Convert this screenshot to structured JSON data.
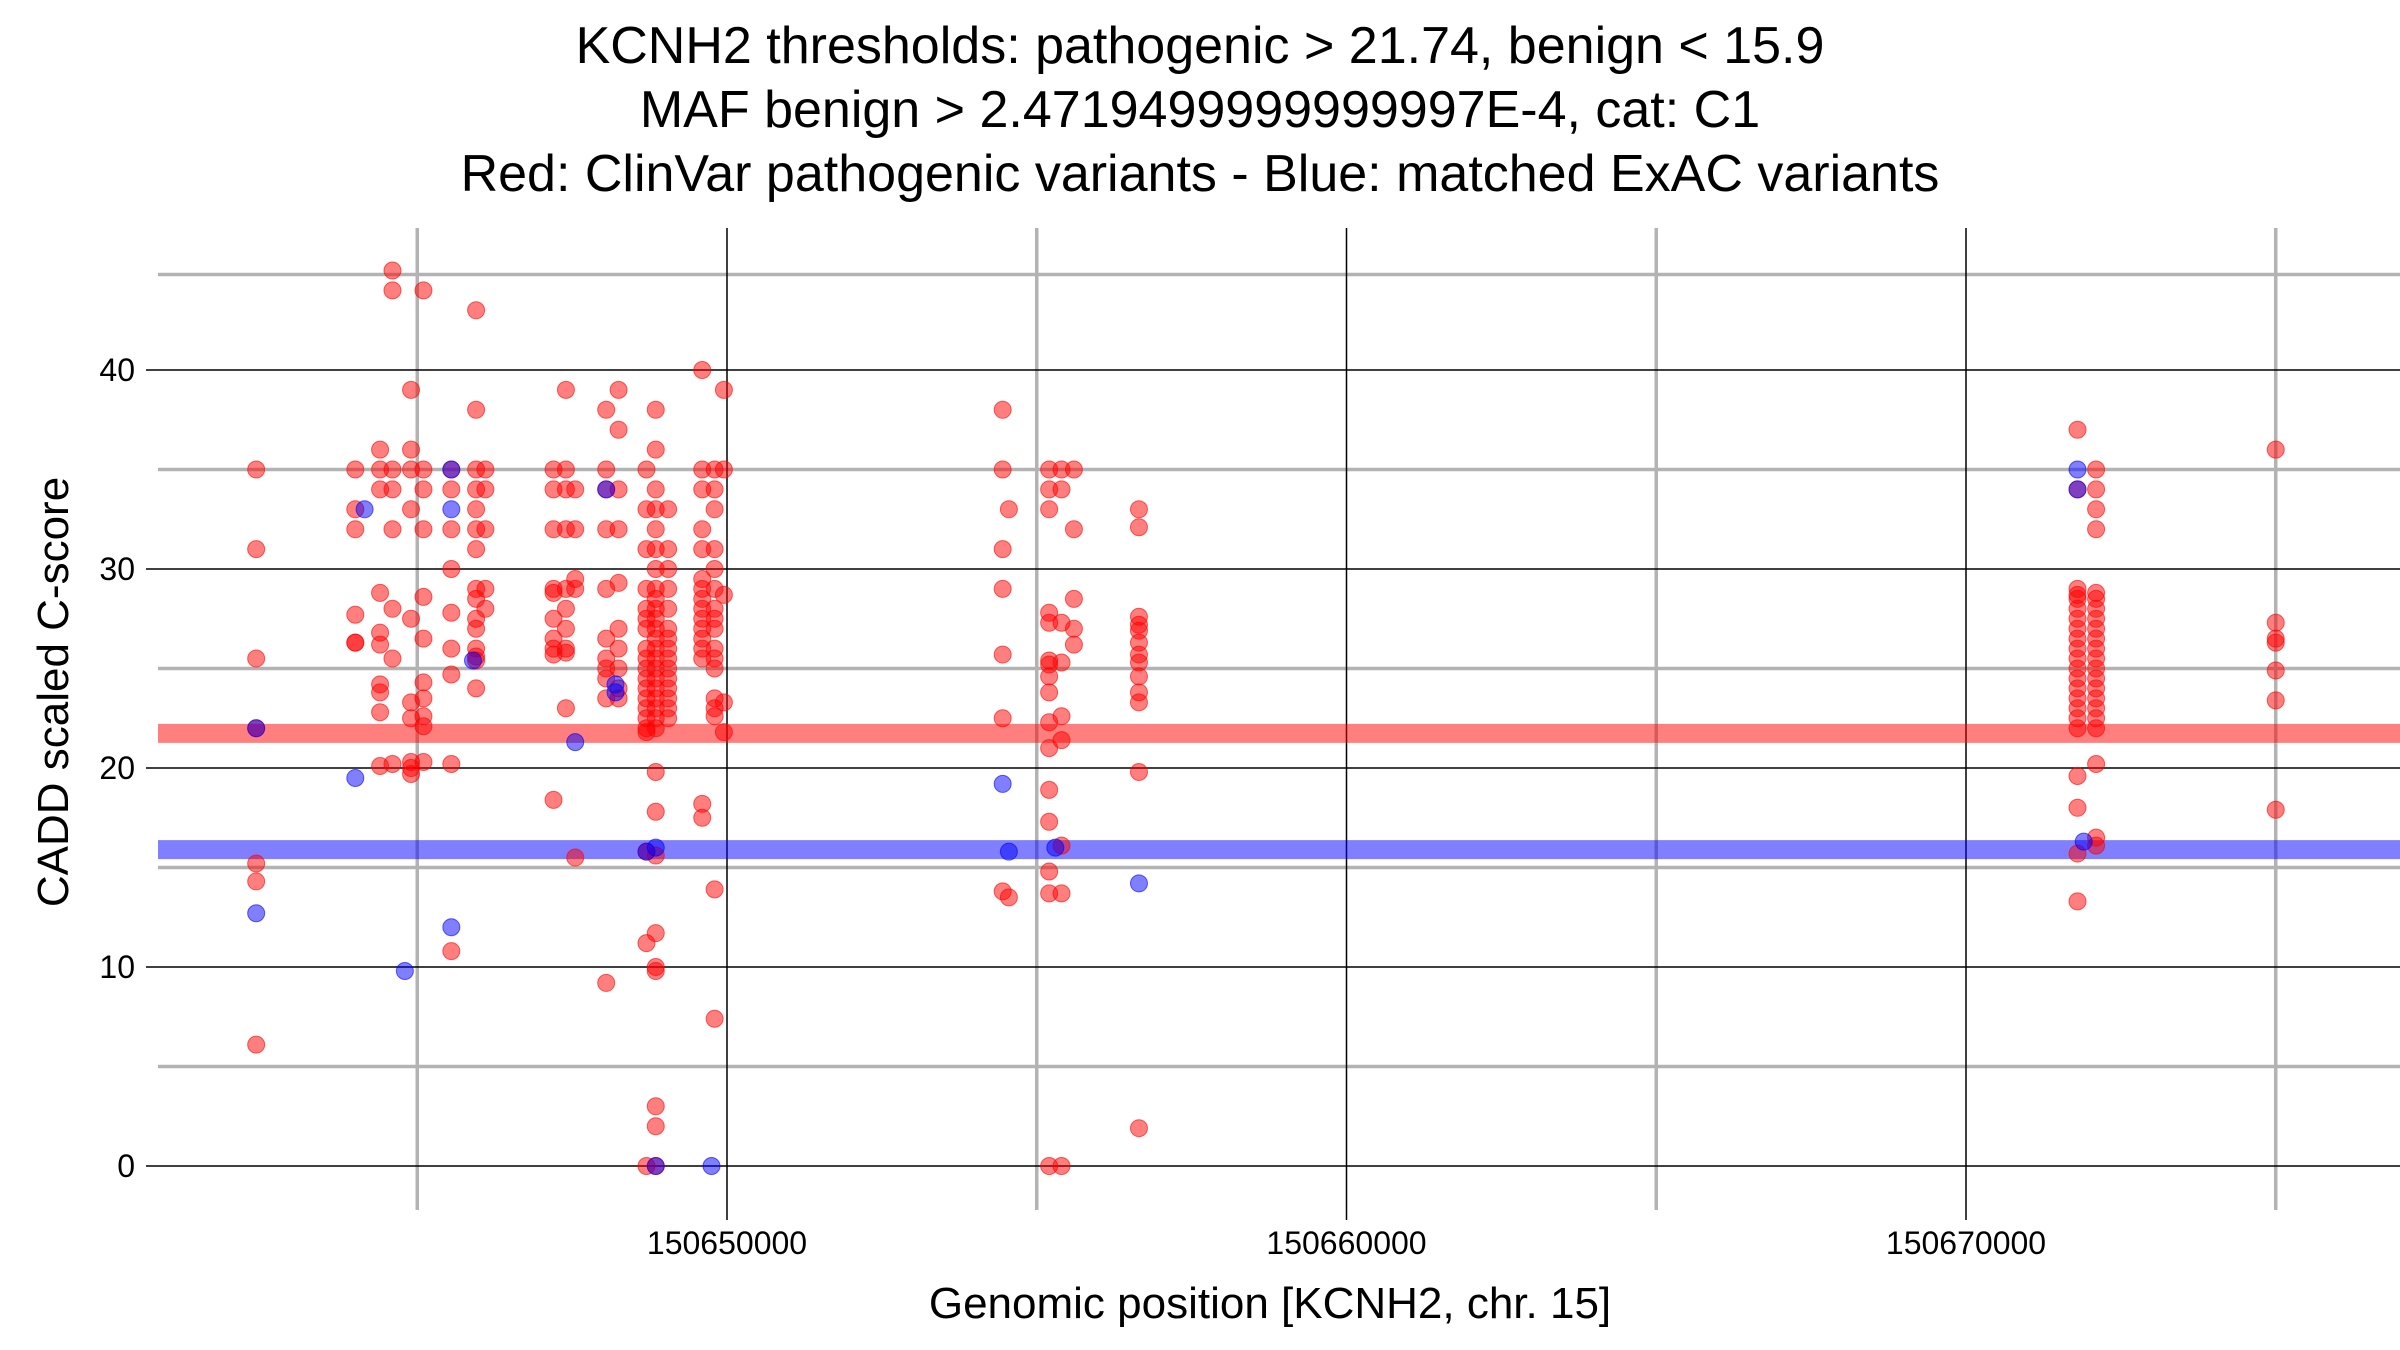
{
  "chart_data": {
    "type": "scatter",
    "title_lines": [
      "KCNH2 thresholds: pathogenic > 21.74, benign < 15.9",
      "MAF benign > 2.4719499999999997E-4, cat: C1",
      "Red: ClinVar pathogenic variants - Blue: matched ExAC variants"
    ],
    "xlabel": "Genomic position [KCNH2, chr. 15]",
    "ylabel": "CADD scaled C-score",
    "xlim": [
      150640600,
      150677000
    ],
    "ylim": [
      -2,
      45
    ],
    "x_major_ticks": [
      150650000,
      150660000,
      150670000
    ],
    "x_minor_ticks": [
      150645000,
      150655000,
      150665000,
      150675000
    ],
    "y_major_ticks": [
      0,
      10,
      20,
      30,
      40
    ],
    "y_minor_ticks": [
      5,
      15,
      25,
      35
    ],
    "thresholds": [
      {
        "name": "pathogenic",
        "value": 21.74,
        "color": "#ff0000"
      },
      {
        "name": "benign",
        "value": 15.9,
        "color": "#0000ff"
      }
    ],
    "colors": {
      "pathogenic": "#ff0000",
      "benign": "#0000ff"
    },
    "series": [
      {
        "name": "ClinVar pathogenic variants",
        "color": "#ff0000",
        "columns": [
          {
            "x": 150642400,
            "y": [
              35,
              31,
              25.5,
              22,
              15.2,
              14.3,
              6.1
            ]
          },
          {
            "x": 150644000,
            "y": [
              35,
              33,
              32,
              27.7,
              26.3,
              26.3
            ]
          },
          {
            "x": 150644400,
            "y": [
              36,
              35,
              34,
              28.8,
              26.8,
              26.2,
              24.2,
              23.8,
              22.8,
              20.1
            ]
          },
          {
            "x": 150644600,
            "y": [
              45,
              44,
              35,
              34,
              32,
              28,
              25.5,
              20.2
            ]
          },
          {
            "x": 150644900,
            "y": [
              39,
              36,
              35,
              33,
              27.5,
              23.3,
              22.5,
              20.3,
              20.0,
              19.7
            ]
          },
          {
            "x": 150645100,
            "y": [
              44,
              35,
              34,
              32,
              28.6,
              26.5,
              24.3,
              23.5,
              22.6,
              22.1,
              20.3
            ]
          },
          {
            "x": 150645550,
            "y": [
              35,
              34,
              32,
              30,
              27.8,
              26,
              24.7,
              20.2,
              10.8
            ]
          },
          {
            "x": 150645950,
            "y": [
              43,
              38,
              35,
              34,
              33,
              32,
              31,
              29,
              28.5,
              27.5,
              27,
              26,
              25.6,
              25.4,
              24
            ]
          },
          {
            "x": 150646100,
            "y": [
              35,
              34,
              32,
              29,
              28
            ]
          },
          {
            "x": 150647200,
            "y": [
              35,
              34,
              32,
              29,
              28.8,
              27.5,
              26.5,
              26,
              25.7,
              18.4
            ]
          },
          {
            "x": 150647400,
            "y": [
              39,
              35,
              34,
              32,
              29,
              28,
              27,
              26,
              25.8,
              23
            ]
          },
          {
            "x": 150647550,
            "y": [
              34,
              32,
              29.5,
              29,
              15.5
            ]
          },
          {
            "x": 150648050,
            "y": [
              38,
              35,
              34,
              32,
              29,
              26.5,
              25.5,
              25,
              24.5,
              23.5,
              9.2
            ]
          },
          {
            "x": 150648250,
            "y": [
              39,
              37,
              34,
              32,
              29.3,
              27,
              26,
              25,
              24,
              23.5
            ]
          },
          {
            "x": 150648700,
            "y": [
              35,
              33,
              31,
              29,
              28,
              27.5,
              27,
              26,
              25.5,
              25,
              24.5,
              24,
              23.5,
              23,
              22.5,
              22,
              21.8,
              15.8,
              11.2,
              0
            ]
          },
          {
            "x": 150648850,
            "y": [
              38,
              36,
              34,
              33,
              32,
              31,
              30,
              29,
              28.5,
              28,
              27.5,
              27,
              26.5,
              26,
              25.5,
              25,
              24.5,
              24,
              23.5,
              23,
              22.5,
              22,
              19.8,
              17.8,
              15.6,
              11.7,
              10,
              9.8,
              3,
              2,
              0
            ]
          },
          {
            "x": 150649050,
            "y": [
              33,
              31,
              30,
              29,
              28,
              27,
              26.5,
              26,
              25.5,
              25,
              24.5,
              24,
              23.5,
              23,
              22.5
            ]
          },
          {
            "x": 150649600,
            "y": [
              40,
              35,
              34,
              32,
              31,
              29.5,
              29,
              28.5,
              28,
              27.5,
              27,
              26.5,
              26,
              25.5,
              18.2,
              17.5
            ]
          },
          {
            "x": 150649800,
            "y": [
              35,
              34,
              33,
              31,
              30,
              29,
              28,
              27.5,
              27,
              26,
              25.5,
              25,
              23.5,
              23,
              22.6,
              13.9,
              7.4
            ]
          },
          {
            "x": 150649950,
            "y": [
              39,
              35,
              28.7,
              23.3,
              21.8
            ]
          },
          {
            "x": 150654450,
            "y": [
              38,
              35,
              31,
              29,
              25.7,
              22.5,
              13.8
            ]
          },
          {
            "x": 150654550,
            "y": [
              33,
              13.5
            ]
          },
          {
            "x": 150655200,
            "y": [
              35,
              34,
              33,
              27.8,
              27.3,
              25.4,
              25.2,
              24.6,
              23.8,
              22.3,
              21,
              18.9,
              17.3,
              14.8,
              13.7,
              0
            ]
          },
          {
            "x": 150655400,
            "y": [
              35,
              34,
              27.3,
              25.3,
              22.6,
              21.4,
              16.1,
              13.7,
              0
            ]
          },
          {
            "x": 150655600,
            "y": [
              35,
              32,
              28.5,
              27,
              26.2
            ]
          },
          {
            "x": 150656650,
            "y": [
              33,
              32.1,
              27.6,
              27.2,
              26.9,
              26.3,
              25.7,
              25.3,
              24.6,
              23.8,
              23.3,
              19.8,
              1.9
            ]
          },
          {
            "x": 150671800,
            "y": [
              37,
              34,
              29,
              28.7,
              28.5,
              28,
              27.5,
              27,
              26.5,
              26,
              25.5,
              25,
              24.5,
              24,
              23.5,
              23,
              22.5,
              22,
              19.6,
              18,
              15.7,
              13.3
            ]
          },
          {
            "x": 150672100,
            "y": [
              35,
              34,
              33,
              32,
              28.8,
              28.5,
              28,
              27.5,
              27,
              26.5,
              26,
              25.5,
              25,
              24.5,
              24,
              23.5,
              23,
              22.5,
              22,
              20.2,
              16.5,
              16.1
            ]
          },
          {
            "x": 150675000,
            "y": [
              36,
              27.3,
              26.5,
              26.3,
              24.9,
              23.4,
              17.9
            ]
          }
        ]
      },
      {
        "name": "matched ExAC variants",
        "color": "#0000ff",
        "points": [
          [
            150642400,
            22
          ],
          [
            150642400,
            12.7
          ],
          [
            150644000,
            19.5
          ],
          [
            150644150,
            33
          ],
          [
            150644800,
            9.8
          ],
          [
            150645550,
            35
          ],
          [
            150645550,
            33
          ],
          [
            150645550,
            12
          ],
          [
            150645900,
            25.4
          ],
          [
            150647550,
            21.3
          ],
          [
            150648050,
            34
          ],
          [
            150648200,
            24.2
          ],
          [
            150648200,
            23.8
          ],
          [
            150648700,
            15.8
          ],
          [
            150648850,
            16
          ],
          [
            150648850,
            0
          ],
          [
            150649750,
            0
          ],
          [
            150654450,
            19.2
          ],
          [
            150654550,
            15.8
          ],
          [
            150655300,
            16
          ],
          [
            150656650,
            14.2
          ],
          [
            150671800,
            35
          ],
          [
            150671800,
            34
          ],
          [
            150671900,
            16.3
          ]
        ]
      }
    ]
  }
}
